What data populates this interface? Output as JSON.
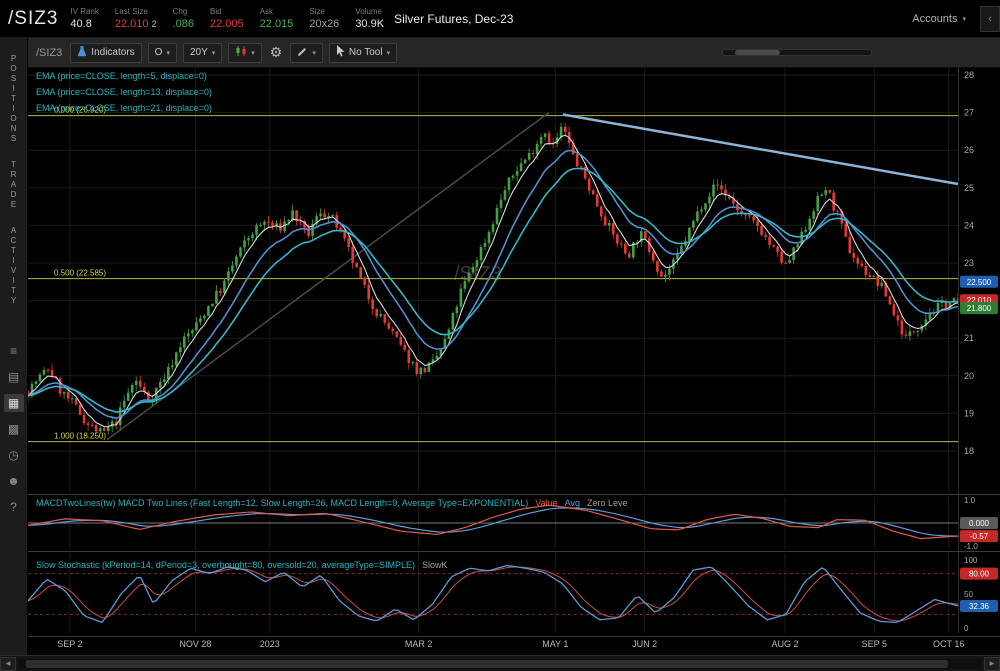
{
  "header": {
    "symbol": "/SIZ3",
    "stats": [
      {
        "label": "IV Rank",
        "value": "40.8",
        "color": "#e0e0e0"
      },
      {
        "label": "Last Size",
        "value": "22.010",
        "extra": "2",
        "color": "#e53935"
      },
      {
        "label": "Chg",
        "value": ".086",
        "color": "#4caf50"
      },
      {
        "label": "Bid",
        "value": "22.005",
        "color": "#e53935"
      },
      {
        "label": "Ask",
        "value": "22.015",
        "color": "#4caf50"
      },
      {
        "label": "Size",
        "value": "20x26",
        "color": "#9e9e9e"
      },
      {
        "label": "Volume",
        "value": "30.9K",
        "color": "#e0e0e0"
      }
    ],
    "description": "Silver Futures, Dec-23",
    "accounts_label": "Accounts",
    "accounts_caret": "▾",
    "collapse_icon": "‹"
  },
  "toolbar": {
    "symbol_label": "/SIZ3",
    "indicators_label": "Indicators",
    "aggregation": "O",
    "range": "20Y",
    "no_tool_label": "No Tool",
    "caret": "▾",
    "gear_icon": "⚙"
  },
  "sidebar": {
    "tabs": [
      {
        "label": "POSITIONS"
      },
      {
        "label": "TRADE"
      },
      {
        "label": "ACTIVITY"
      }
    ],
    "icons": [
      {
        "name": "watchlist-icon",
        "glyph": "≡"
      },
      {
        "name": "orders-icon",
        "glyph": "▤"
      },
      {
        "name": "chart-icon",
        "glyph": "▦",
        "active": true
      },
      {
        "name": "apps-grid-icon",
        "glyph": "▩"
      },
      {
        "name": "history-clock-icon",
        "glyph": "◷"
      },
      {
        "name": "community-icon",
        "glyph": "☻"
      },
      {
        "name": "help-icon",
        "glyph": "?"
      }
    ]
  },
  "scrollbar": {
    "left_arrow": "◂",
    "right_arrow": "▸"
  },
  "chart_data": {
    "type": "candlestick",
    "symbol": "/SIZ3",
    "watermark": "/SIZ3",
    "ylim": [
      18,
      28
    ],
    "y_ticks": [
      28,
      27,
      26,
      25,
      24,
      23,
      22,
      21,
      20,
      19,
      18
    ],
    "x_labels": [
      [
        "SEP 2",
        0.045
      ],
      [
        "NOV 28",
        0.18
      ],
      [
        "2023",
        0.26
      ],
      [
        "MAR 2",
        0.42
      ],
      [
        "MAY 1",
        0.567
      ],
      [
        "JUN 2",
        0.663
      ],
      [
        "AUG 2",
        0.814
      ],
      [
        "SEP 5",
        0.91
      ],
      [
        "OCT 16",
        0.99
      ]
    ],
    "num_candles": 233,
    "candle_up": "#43a047",
    "candle_down": "#e53935",
    "price_path": [
      [
        0,
        19.6
      ],
      [
        0.01,
        19.9
      ],
      [
        0.022,
        20.2
      ],
      [
        0.035,
        19.6
      ],
      [
        0.05,
        19.2
      ],
      [
        0.065,
        18.7
      ],
      [
        0.08,
        18.45
      ],
      [
        0.095,
        18.8
      ],
      [
        0.105,
        19.4
      ],
      [
        0.115,
        19.9
      ],
      [
        0.13,
        19.35
      ],
      [
        0.15,
        20.1
      ],
      [
        0.165,
        20.9
      ],
      [
        0.18,
        21.3
      ],
      [
        0.195,
        21.9
      ],
      [
        0.21,
        22.4
      ],
      [
        0.225,
        23.2
      ],
      [
        0.24,
        23.8
      ],
      [
        0.255,
        24.1
      ],
      [
        0.27,
        23.9
      ],
      [
        0.285,
        24.35
      ],
      [
        0.3,
        23.7
      ],
      [
        0.315,
        24.4
      ],
      [
        0.33,
        24.1
      ],
      [
        0.345,
        23.3
      ],
      [
        0.36,
        22.4
      ],
      [
        0.375,
        21.7
      ],
      [
        0.39,
        21.2
      ],
      [
        0.405,
        20.6
      ],
      [
        0.42,
        20.1
      ],
      [
        0.435,
        20.3
      ],
      [
        0.45,
        21.0
      ],
      [
        0.465,
        22.2
      ],
      [
        0.48,
        23.0
      ],
      [
        0.495,
        23.8
      ],
      [
        0.51,
        24.8
      ],
      [
        0.525,
        25.5
      ],
      [
        0.54,
        25.9
      ],
      [
        0.555,
        26.55
      ],
      [
        0.565,
        26.1
      ],
      [
        0.575,
        26.65
      ],
      [
        0.585,
        25.9
      ],
      [
        0.6,
        25.2
      ],
      [
        0.615,
        24.4
      ],
      [
        0.63,
        23.7
      ],
      [
        0.645,
        23.2
      ],
      [
        0.658,
        23.8
      ],
      [
        0.67,
        23.3
      ],
      [
        0.682,
        22.6
      ],
      [
        0.695,
        23.0
      ],
      [
        0.71,
        23.8
      ],
      [
        0.725,
        24.6
      ],
      [
        0.74,
        25.1
      ],
      [
        0.755,
        24.7
      ],
      [
        0.77,
        24.2
      ],
      [
        0.785,
        24.0
      ],
      [
        0.8,
        23.4
      ],
      [
        0.815,
        22.9
      ],
      [
        0.83,
        23.6
      ],
      [
        0.845,
        24.5
      ],
      [
        0.858,
        25.0
      ],
      [
        0.87,
        24.3
      ],
      [
        0.882,
        23.4
      ],
      [
        0.895,
        22.9
      ],
      [
        0.908,
        22.6
      ],
      [
        0.92,
        22.3
      ],
      [
        0.932,
        21.6
      ],
      [
        0.944,
        21.0
      ],
      [
        0.956,
        21.3
      ],
      [
        0.97,
        21.7
      ],
      [
        0.985,
        21.9
      ],
      [
        1,
        22.0
      ]
    ],
    "studies_labels": [
      "EMA (price=CLOSE, length=5, displace=0)",
      "EMA (price=CLOSE, length=13, displace=0)",
      "EMA (price=CLOSE, length=21, displace=0)"
    ],
    "study_label_color": "#2bb3c0",
    "ema_periods": [
      5,
      13,
      21
    ],
    "ema_colors": [
      "#d8d8d8",
      "#4f8fd0",
      "#37b6c9"
    ],
    "fib_levels": [
      {
        "label": "0.000 (26.920)",
        "price": 26.92
      },
      {
        "label": "0.500 (22.585)",
        "price": 22.585
      },
      {
        "label": "1.000 (18.250)",
        "price": 18.25
      }
    ],
    "trendlines": [
      {
        "t1": 0.085,
        "p1": 18.3,
        "t2": 0.56,
        "p2": 27.0,
        "color": "#4a4a4a",
        "w": 1.5
      },
      {
        "t1": 0.575,
        "p1": 26.95,
        "t2": 1.0,
        "p2": 25.1,
        "color": "#8ab4d8",
        "w": 2.5
      }
    ],
    "axis_bubbles": [
      {
        "text": "22.500",
        "color": "#1e5fb4",
        "price": 22.5
      },
      {
        "text": "22.010",
        "color": "#c62828",
        "price": 22.01
      },
      {
        "text": "21.800",
        "color": "#2e7d32",
        "price": 21.8
      }
    ],
    "macd": {
      "label": "MACDTwoLines(tw) MACD Two Lines (Fast Length=12, Slow Length=26, MACD Length=9, Average Type=EXPONENTIAL)",
      "legend": [
        {
          "text": "Value",
          "color": "#e05b4c"
        },
        {
          "text": "Avg",
          "color": "#5b9bd5"
        },
        {
          "text": "Zero Leve",
          "color": "#9e9e9e"
        }
      ],
      "value_color": "#e05b4c",
      "avg_color": "#5b9bd5",
      "zero_line_color": "#777777",
      "ylim": [
        -1,
        1
      ],
      "ticks": [
        {
          "text": "1.0",
          "v": 1
        },
        {
          "text": "-1.0",
          "v": -1
        }
      ],
      "path": [
        [
          0,
          -0.1
        ],
        [
          0.04,
          0.18
        ],
        [
          0.08,
          0.1
        ],
        [
          0.12,
          -0.28
        ],
        [
          0.16,
          0.08
        ],
        [
          0.2,
          0.35
        ],
        [
          0.24,
          0.48
        ],
        [
          0.28,
          0.32
        ],
        [
          0.32,
          0.42
        ],
        [
          0.36,
          0.05
        ],
        [
          0.4,
          -0.35
        ],
        [
          0.44,
          -0.5
        ],
        [
          0.47,
          -0.2
        ],
        [
          0.5,
          0.25
        ],
        [
          0.53,
          0.6
        ],
        [
          0.56,
          0.78
        ],
        [
          0.6,
          0.55
        ],
        [
          0.64,
          0.1
        ],
        [
          0.67,
          -0.25
        ],
        [
          0.7,
          -0.3
        ],
        [
          0.73,
          0.15
        ],
        [
          0.76,
          0.38
        ],
        [
          0.79,
          0.2
        ],
        [
          0.82,
          -0.15
        ],
        [
          0.85,
          -0.2
        ],
        [
          0.87,
          0.15
        ],
        [
          0.9,
          0.12
        ],
        [
          0.93,
          -0.35
        ],
        [
          0.96,
          -0.68
        ],
        [
          0.98,
          -0.62
        ],
        [
          1,
          -0.57
        ]
      ],
      "bubbles": [
        {
          "text": "0.000",
          "color": "#5a5a5a",
          "v": 0
        },
        {
          "text": "-0.57",
          "color": "#c62828",
          "v": -0.57
        }
      ]
    },
    "stoch": {
      "label": "Slow Stochastic (kPeriod=14, dPeriod=3, overbought=80, oversold=20, averageType=SIMPLE)",
      "legend": [
        {
          "text": "SlowK",
          "color": "#9e9e9e"
        }
      ],
      "k_color": "#5b9bd5",
      "d_color": "#c94f4f",
      "band_color": "#7a2e2e",
      "overbought": 80,
      "oversold": 20,
      "ylim": [
        0,
        100
      ],
      "ticks": [
        {
          "text": "100",
          "v": 100
        },
        {
          "text": "50",
          "v": 50
        },
        {
          "text": "0",
          "v": 0
        }
      ],
      "path": [
        [
          0,
          40
        ],
        [
          0.02,
          72
        ],
        [
          0.04,
          55
        ],
        [
          0.06,
          18
        ],
        [
          0.08,
          8
        ],
        [
          0.1,
          50
        ],
        [
          0.12,
          78
        ],
        [
          0.135,
          35
        ],
        [
          0.155,
          70
        ],
        [
          0.175,
          88
        ],
        [
          0.195,
          80
        ],
        [
          0.215,
          90
        ],
        [
          0.235,
          85
        ],
        [
          0.255,
          68
        ],
        [
          0.275,
          82
        ],
        [
          0.295,
          60
        ],
        [
          0.315,
          78
        ],
        [
          0.335,
          40
        ],
        [
          0.355,
          18
        ],
        [
          0.375,
          10
        ],
        [
          0.395,
          28
        ],
        [
          0.415,
          12
        ],
        [
          0.435,
          35
        ],
        [
          0.455,
          75
        ],
        [
          0.475,
          88
        ],
        [
          0.495,
          84
        ],
        [
          0.515,
          92
        ],
        [
          0.535,
          88
        ],
        [
          0.555,
          82
        ],
        [
          0.575,
          65
        ],
        [
          0.595,
          30
        ],
        [
          0.615,
          12
        ],
        [
          0.635,
          15
        ],
        [
          0.655,
          48
        ],
        [
          0.675,
          22
        ],
        [
          0.695,
          45
        ],
        [
          0.715,
          85
        ],
        [
          0.735,
          90
        ],
        [
          0.755,
          62
        ],
        [
          0.775,
          32
        ],
        [
          0.795,
          12
        ],
        [
          0.815,
          20
        ],
        [
          0.835,
          68
        ],
        [
          0.855,
          90
        ],
        [
          0.875,
          55
        ],
        [
          0.895,
          22
        ],
        [
          0.915,
          10
        ],
        [
          0.935,
          8
        ],
        [
          0.955,
          25
        ],
        [
          0.975,
          42
        ],
        [
          1,
          32.36
        ]
      ],
      "bubbles": [
        {
          "text": "80.00",
          "color": "#c62828",
          "v": 80
        },
        {
          "text": "32.36",
          "color": "#1e5fb4",
          "v": 32.36
        }
      ]
    }
  }
}
